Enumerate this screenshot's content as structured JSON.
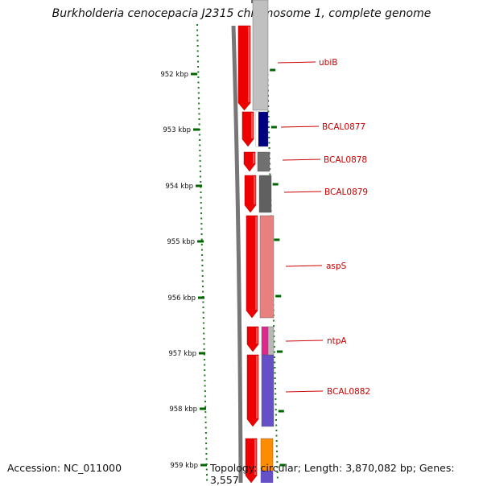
{
  "title": "Burkholderia cenocepacia J2315 chromosome 1, complete genome",
  "footer": {
    "accession": "Accession: NC_011000",
    "topology": "Topology: circular; Length: 3,870,082 bp; Genes: 3,557"
  },
  "colors": {
    "label_red": "#cc0000",
    "tick_green": "#006600",
    "backbone": "#777777"
  },
  "scale": {
    "unit": "kbp",
    "ticks": [
      "952 kbp",
      "953 kbp",
      "954 kbp",
      "955 kbp",
      "956 kbp",
      "957 kbp",
      "958 kbp",
      "959 kbp"
    ]
  },
  "genes": [
    {
      "name": "ubiB",
      "cog_color": "#c0c0c0"
    },
    {
      "name": "BCAL0877",
      "cog_color": "#000080"
    },
    {
      "name": "BCAL0878",
      "cog_color": "#707070"
    },
    {
      "name": "BCAL0879",
      "cog_color": "#606060"
    },
    {
      "name": "aspS",
      "cog_color": "#e88080"
    },
    {
      "name": "ntpA",
      "cog_color": "#e0288c"
    },
    {
      "name": "BCAL0882",
      "cog_color": "#6650c8"
    },
    {
      "name": "",
      "cog_color": "#ff8c00"
    }
  ]
}
